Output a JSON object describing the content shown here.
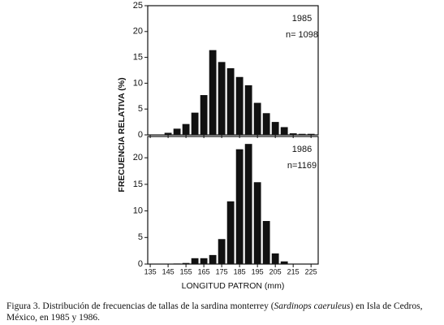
{
  "chart_data": [
    {
      "type": "bar",
      "annotations": [
        "1985",
        "n= 1098"
      ],
      "color": "#111111",
      "x": [
        145,
        150,
        155,
        160,
        165,
        170,
        175,
        180,
        185,
        190,
        195,
        200,
        205,
        210,
        215,
        220,
        225
      ],
      "values": [
        0.4,
        1.2,
        2.1,
        4.3,
        7.7,
        16.4,
        14.1,
        12.9,
        11.2,
        9.6,
        6.2,
        4.2,
        2.5,
        1.5,
        0.3,
        0.2,
        0.2
      ],
      "xlim": [
        133.6,
        229
      ],
      "ylim": [
        0,
        25
      ],
      "yticks": [
        0,
        5,
        10,
        15,
        20,
        25
      ]
    },
    {
      "type": "bar",
      "annotations": [
        "1986",
        "n=1169"
      ],
      "color": "#111111",
      "x": [
        150,
        155,
        160,
        165,
        170,
        175,
        180,
        185,
        190,
        195,
        200,
        205,
        210
      ],
      "values": [
        0.1,
        0.2,
        1.1,
        1.1,
        1.7,
        4.7,
        11.8,
        21.6,
        22.6,
        15.4,
        8.1,
        2.0,
        0.5
      ],
      "xlim": [
        133.6,
        229
      ],
      "ylim": [
        0,
        24
      ],
      "yticks": [
        0,
        5,
        10,
        15,
        20
      ],
      "xticks": [
        135,
        145,
        155,
        165,
        175,
        185,
        195,
        205,
        215,
        225
      ]
    }
  ],
  "xlabel": "LONGITUD PATRON (mm)",
  "ylabel": "FRECUENCIA RELATIVA (%)",
  "caption": [
    "Figura 3. Distribución de frecuencias de tallas de la sardina monterrey (",
    "Sardinops caeruleus",
    ") en Isla de Cedros, México, en 1985 y 1986."
  ]
}
